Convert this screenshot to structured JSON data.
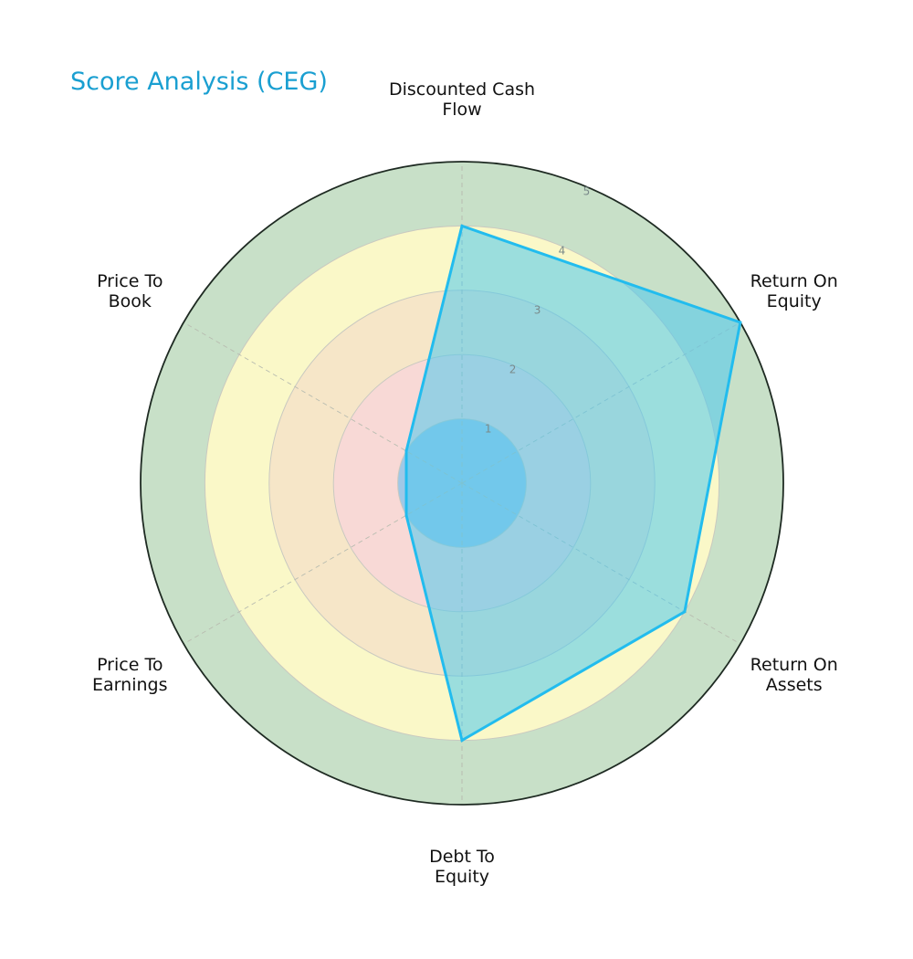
{
  "chart_data": {
    "type": "radar",
    "title": "Score Analysis (CEG)",
    "categories": [
      [
        "Discounted Cash",
        "Flow"
      ],
      [
        "Return On",
        "Equity"
      ],
      [
        "Return On",
        "Assets"
      ],
      [
        "Debt To",
        "Equity"
      ],
      [
        "Price To",
        "Earnings"
      ],
      [
        "Price To",
        "Book"
      ]
    ],
    "series": [
      {
        "values": [
          4,
          5,
          4,
          4,
          1,
          1
        ]
      }
    ],
    "rlim": [
      0,
      5
    ],
    "rticks": [
      "1",
      "2",
      "3",
      "4",
      "5"
    ],
    "bands": [
      {
        "from": 0,
        "to": 1,
        "color": "#9fc8e6"
      },
      {
        "from": 1,
        "to": 2,
        "color": "#f8d9d6"
      },
      {
        "from": 2,
        "to": 3,
        "color": "#f6e6c8"
      },
      {
        "from": 3,
        "to": 4,
        "color": "#faf8c8"
      },
      {
        "from": 4,
        "to": 5,
        "color": "#c8e0c8"
      }
    ],
    "colors": {
      "title": "#1a9fd1",
      "series_line": "#22bcee",
      "series_fill": "#4dc8ef",
      "outline": "#1e2a22"
    }
  }
}
